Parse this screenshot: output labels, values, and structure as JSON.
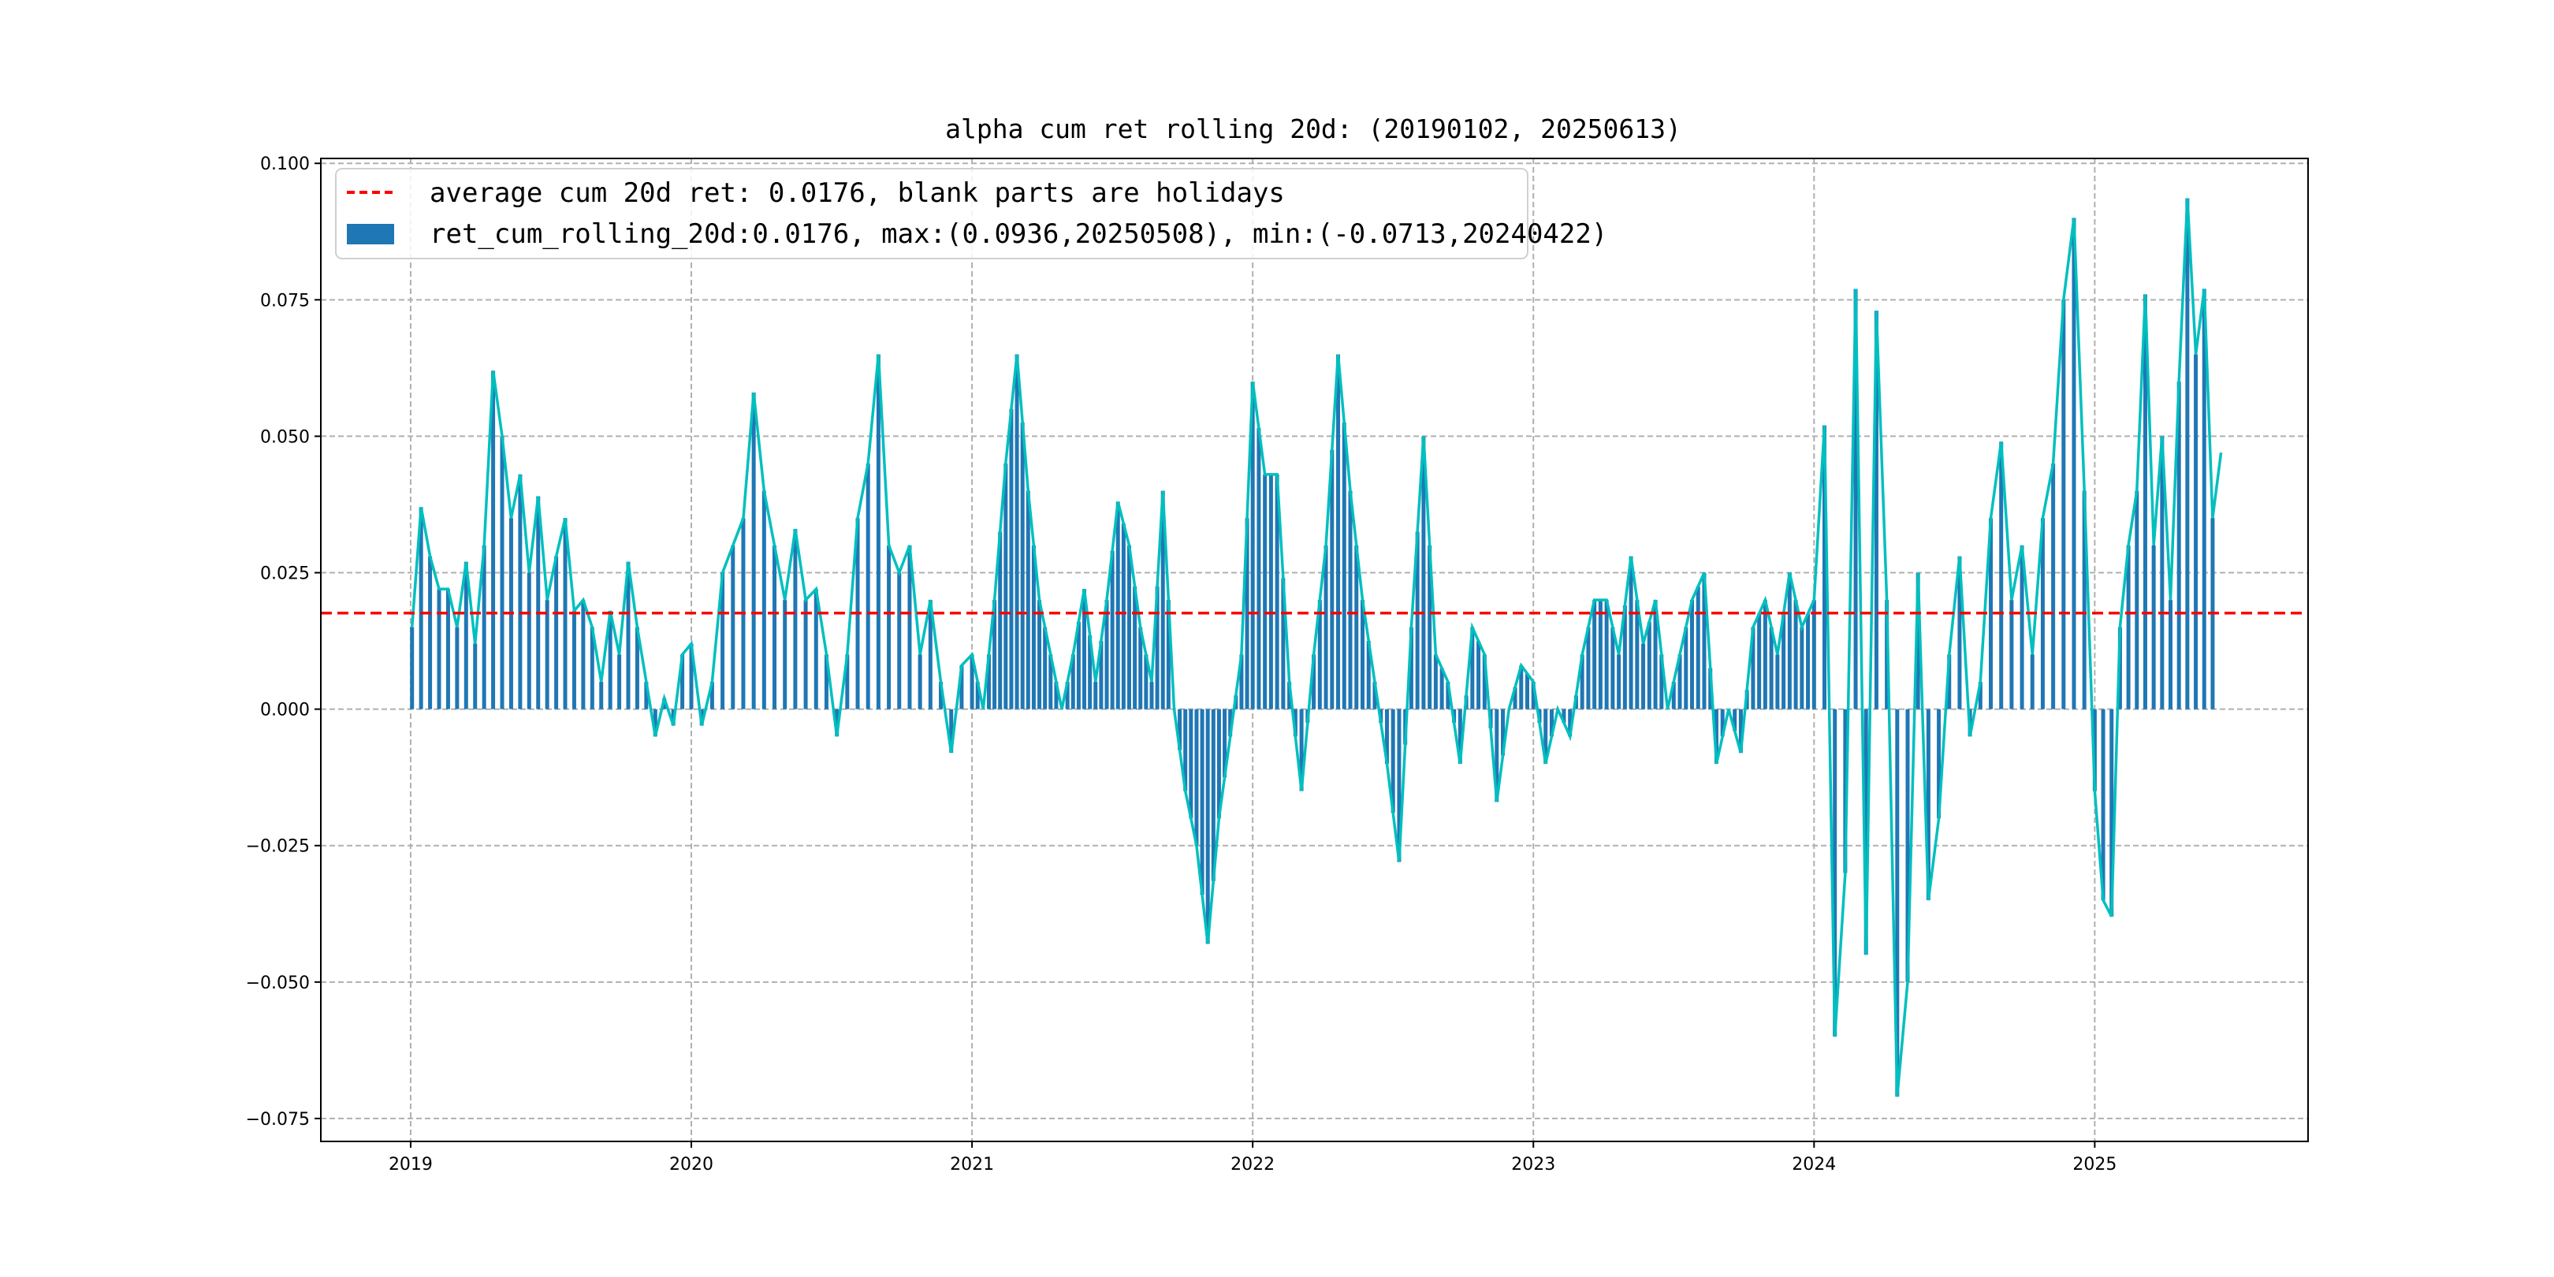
{
  "chart_data": {
    "type": "bar",
    "title": "alpha cum ret rolling 20d: (20190102, 20250613)",
    "xlabel": "",
    "ylabel": "",
    "xlim": [
      2018.68,
      2025.76
    ],
    "ylim": [
      -0.0792,
      0.1009
    ],
    "grid": true,
    "legend_placement": "top-left",
    "x_ticks": [
      "2019",
      "2020",
      "2021",
      "2022",
      "2023",
      "2024",
      "2025"
    ],
    "y_ticks": [
      "0.100",
      "0.075",
      "0.050",
      "0.025",
      "0.000",
      "−0.025",
      "−0.050",
      "−0.075"
    ],
    "y_tick_values": [
      0.1,
      0.075,
      0.05,
      0.025,
      0,
      -0.025,
      -0.05,
      -0.075
    ],
    "average": {
      "label": "average cum 20d ret: 0.0176, blank parts are holidays",
      "value": 0.0176,
      "color": "#ff0000"
    },
    "series_label": "ret_cum_rolling_20d:0.0176, max:(0.0936,20250508), min:(-0.0713,20240422)",
    "bar_color": "#1f77b4",
    "line_color": "#00bfbf",
    "series": [
      {
        "year": 2019,
        "span": 1,
        "values": [
          0.015,
          0.037,
          0.028,
          0.022,
          0.022,
          0.015,
          0.027,
          0.012,
          0.03,
          0.062,
          0.05,
          0.035,
          0.043,
          0.025,
          0.039,
          0.02,
          0.028,
          0.035,
          0.018,
          0.02,
          0.015,
          0.005,
          0.018,
          0.01,
          0.027,
          0.015,
          0.005,
          -0.005,
          0.002,
          -0.003,
          0.01
        ]
      },
      {
        "year": 2020,
        "span": 1,
        "values": [
          0.012,
          -0.003,
          0.005,
          0.025,
          0.03,
          0.035,
          0.058,
          0.04,
          0.03,
          0.02,
          0.033,
          0.02,
          0.022,
          0.01,
          -0.005,
          0.01,
          0.035,
          0.045,
          0.065,
          0.03,
          0.025,
          0.03,
          0.01,
          0.02,
          0.005,
          -0.008,
          0.008
        ]
      },
      {
        "year": 2021,
        "span": 1,
        "values": [
          0.01,
          0.0,
          0.02,
          0.045,
          0.065,
          0.04,
          0.02,
          0.01,
          0.0,
          0.01,
          0.022,
          0.005,
          0.02,
          0.038,
          0.03,
          0.015,
          0.005,
          0.04,
          0.0,
          -0.015,
          -0.025,
          -0.043,
          -0.02,
          -0.005,
          0.01
        ]
      },
      {
        "year": 2022,
        "span": 1,
        "values": [
          0.06,
          0.043,
          0.043,
          0.005,
          -0.015,
          0.01,
          0.03,
          0.065,
          0.04,
          0.02,
          0.005,
          -0.01,
          -0.028,
          0.015,
          0.05,
          0.01,
          0.005,
          -0.01,
          0.015,
          0.01,
          -0.017,
          0.0,
          0.008
        ]
      },
      {
        "year": 2023,
        "span": 1,
        "values": [
          0.005,
          -0.01,
          0.0,
          -0.005,
          0.01,
          0.02,
          0.02,
          0.01,
          0.028,
          0.012,
          0.02,
          0.0,
          0.01,
          0.02,
          0.025,
          -0.01,
          0.0,
          -0.008,
          0.015,
          0.02,
          0.01,
          0.025,
          0.015
        ]
      },
      {
        "year": 2024,
        "span": 1,
        "values": [
          0.02,
          0.052,
          -0.06,
          -0.03,
          0.077,
          -0.045,
          0.073,
          0.02,
          -0.071,
          -0.05,
          0.025,
          -0.035,
          -0.02,
          0.01,
          0.028,
          -0.005,
          0.005,
          0.035,
          0.049,
          0.02,
          0.03,
          0.01,
          0.035,
          0.045,
          0.075,
          0.09,
          0.04
        ]
      },
      {
        "year": 2025,
        "span": 0.45,
        "values": [
          -0.015,
          -0.035,
          -0.038,
          0.015,
          0.03,
          0.04,
          0.076,
          0.03,
          0.05,
          0.02,
          0.06,
          0.0936,
          0.065,
          0.077,
          0.035,
          0.047
        ]
      }
    ]
  }
}
